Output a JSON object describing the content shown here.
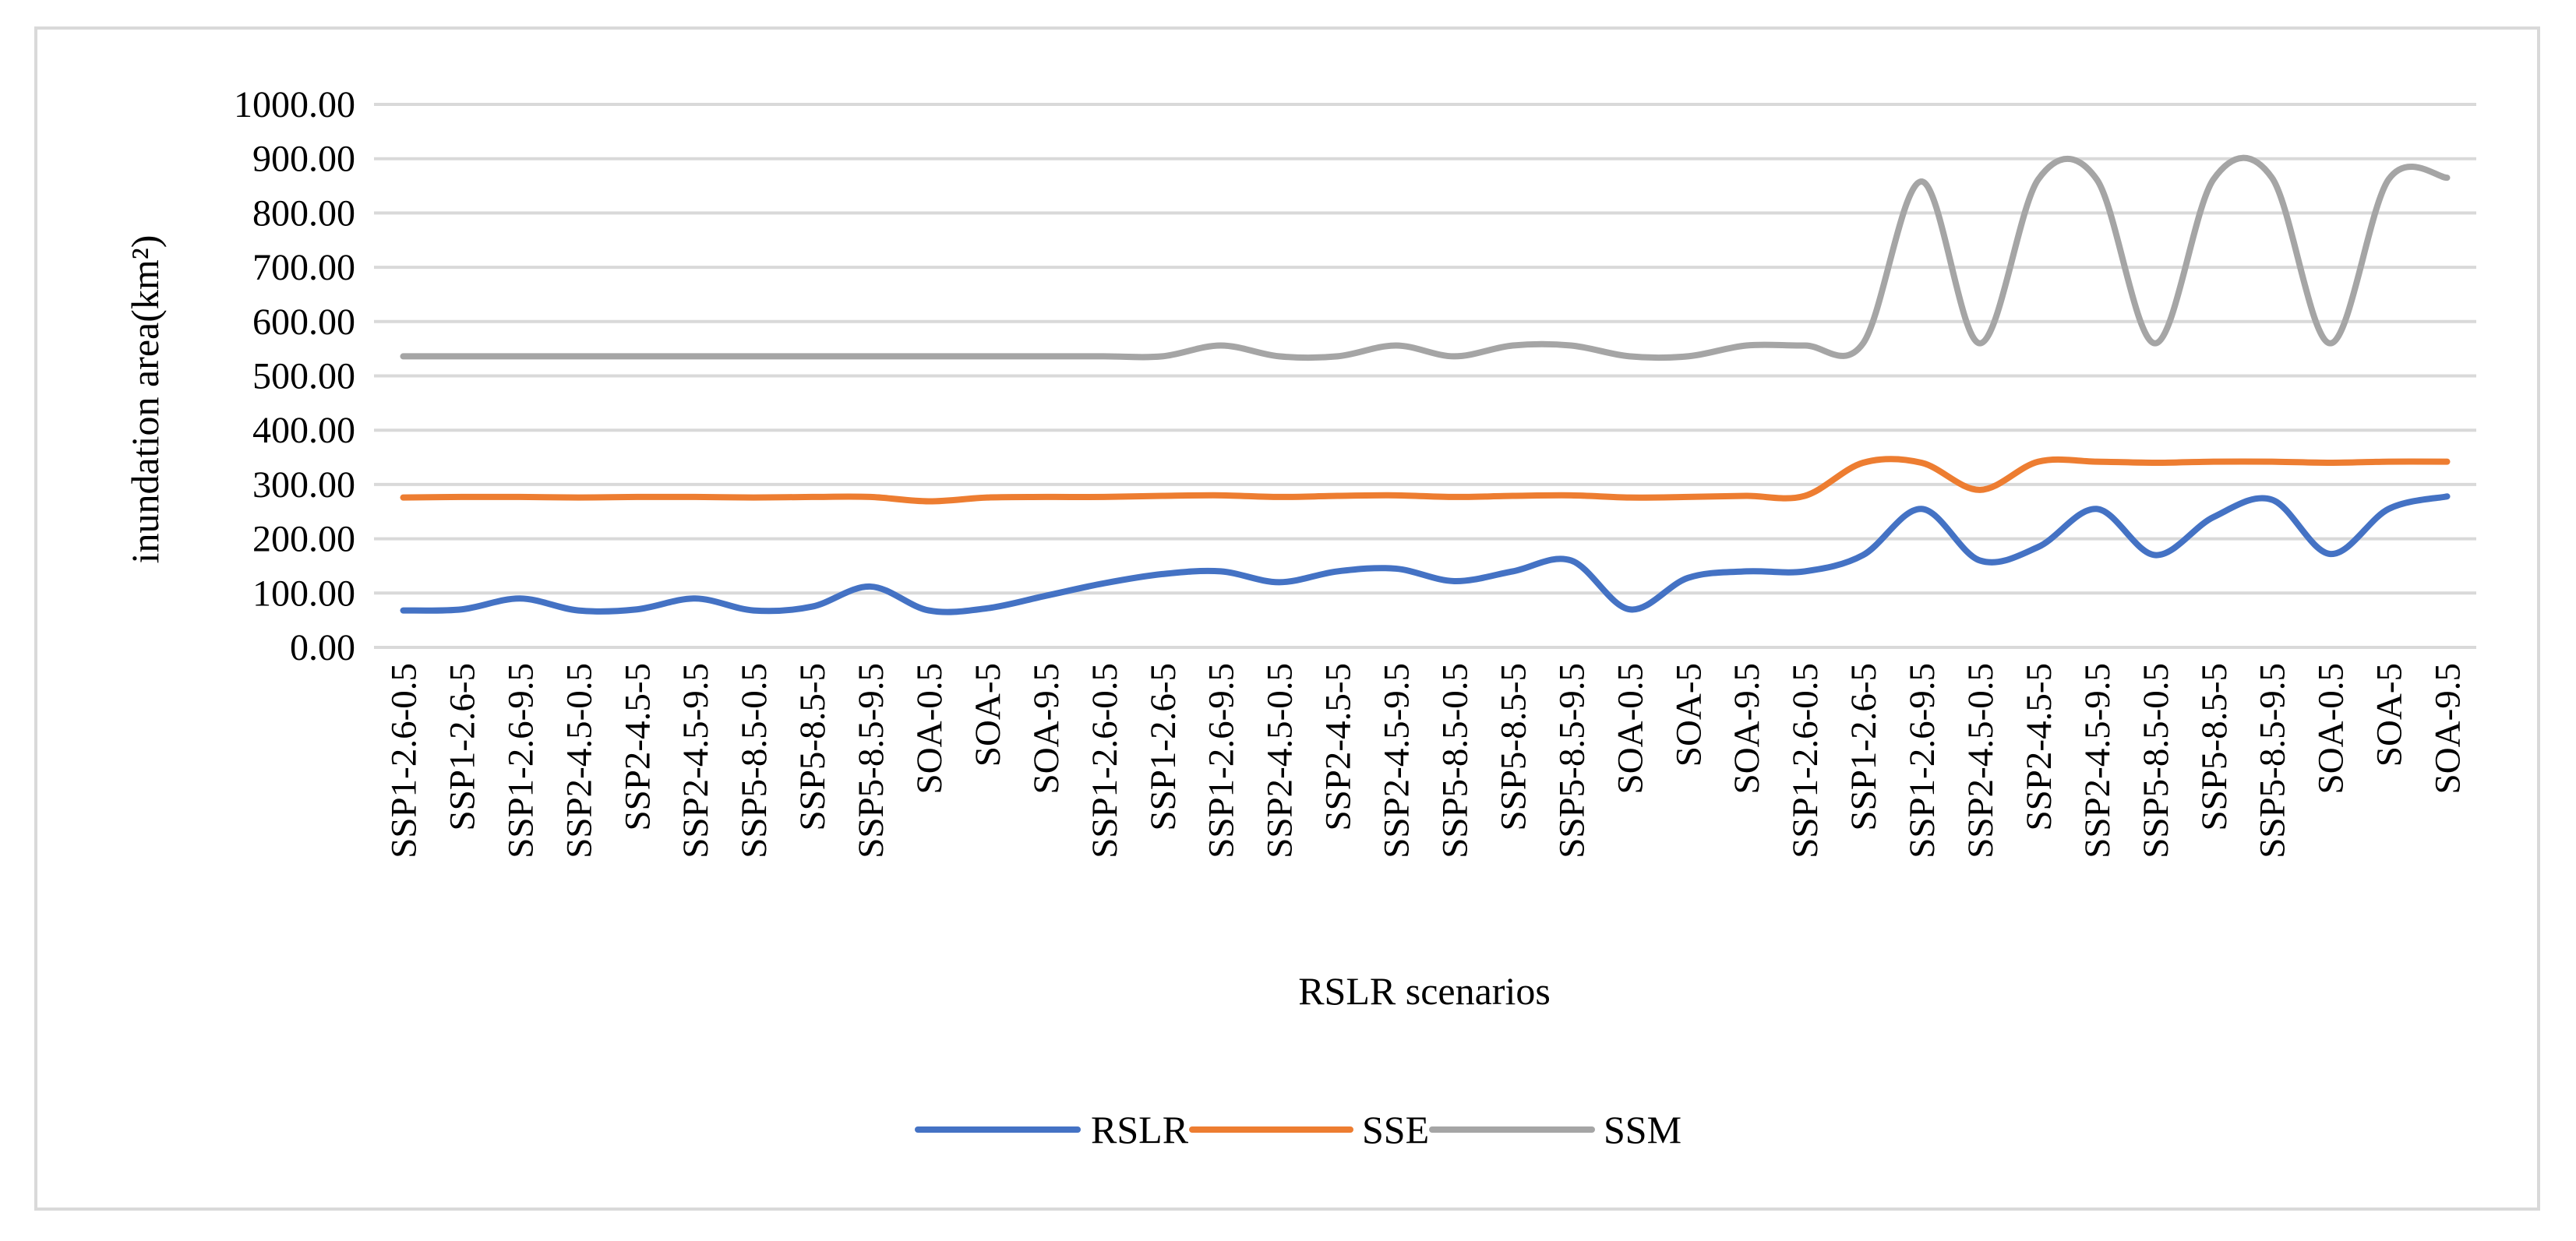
{
  "chart_data": {
    "type": "line",
    "smooth": true,
    "title": "",
    "xlabel": "RSLR scenarios",
    "ylabel": "inundation area(km²)",
    "ylim": [
      0,
      1000
    ],
    "ytick_step": 100,
    "ytick_labels": [
      "0.00",
      "100.00",
      "200.00",
      "300.00",
      "400.00",
      "500.00",
      "600.00",
      "700.00",
      "800.00",
      "900.00",
      "1000.00"
    ],
    "grid": "horizontal",
    "legend_position": "bottom",
    "categories": [
      "SSP1-2.6-0.5",
      "SSP1-2.6-5",
      "SSP1-2.6-9.5",
      "SSP2-4.5-0.5",
      "SSP2-4.5-5",
      "SSP2-4.5-9.5",
      "SSP5-8.5-0.5",
      "SSP5-8.5-5",
      "SSP5-8.5-9.5",
      "SOA-0.5",
      "SOA-5",
      "SOA-9.5",
      "SSP1-2.6-0.5",
      "SSP1-2.6-5",
      "SSP1-2.6-9.5",
      "SSP2-4.5-0.5",
      "SSP2-4.5-5",
      "SSP2-4.5-9.5",
      "SSP5-8.5-0.5",
      "SSP5-8.5-5",
      "SSP5-8.5-9.5",
      "SOA-0.5",
      "SOA-5",
      "SOA-9.5",
      "SSP1-2.6-0.5",
      "SSP1-2.6-5",
      "SSP1-2.6-9.5",
      "SSP2-4.5-0.5",
      "SSP2-4.5-5",
      "SSP2-4.5-9.5",
      "SSP5-8.5-0.5",
      "SSP5-8.5-5",
      "SSP5-8.5-9.5",
      "SOA-0.5",
      "SOA-5",
      "SOA-9.5"
    ],
    "series": [
      {
        "name": "RSLR",
        "color": "#4472c4",
        "values": [
          68,
          70,
          90,
          68,
          70,
          90,
          68,
          75,
          112,
          68,
          72,
          95,
          118,
          135,
          140,
          120,
          140,
          145,
          122,
          140,
          160,
          70,
          128,
          140,
          140,
          170,
          255,
          160,
          185,
          255,
          170,
          240,
          272,
          172,
          255,
          278
        ]
      },
      {
        "name": "SSE",
        "color": "#ed7d31",
        "values": [
          276,
          277,
          277,
          276,
          277,
          277,
          276,
          277,
          277,
          269,
          276,
          277,
          277,
          279,
          280,
          277,
          279,
          280,
          277,
          279,
          280,
          276,
          277,
          279,
          279,
          340,
          340,
          290,
          342,
          342,
          340,
          342,
          342,
          340,
          342,
          342
        ]
      },
      {
        "name": "SSM",
        "color": "#a5a5a5",
        "values": [
          536,
          536,
          536,
          536,
          536,
          536,
          536,
          536,
          536,
          536,
          536,
          536,
          536,
          536,
          556,
          536,
          536,
          556,
          536,
          556,
          556,
          536,
          536,
          556,
          556,
          560,
          858,
          560,
          862,
          862,
          560,
          862,
          865,
          560,
          862,
          865
        ]
      }
    ]
  }
}
